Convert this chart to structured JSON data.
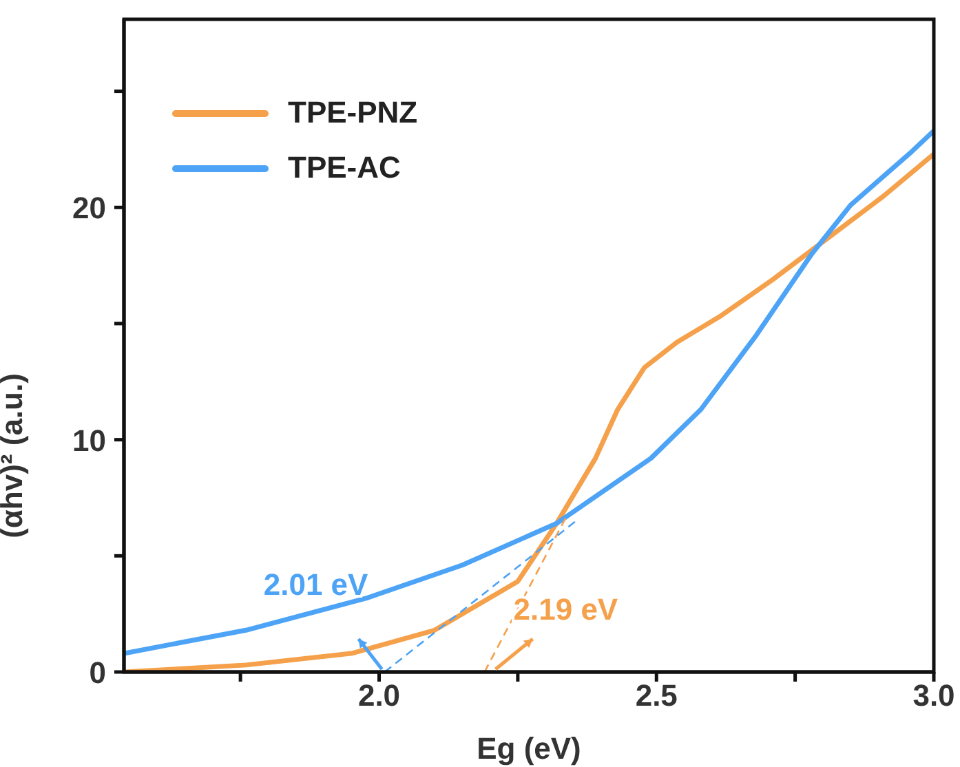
{
  "chart_data": {
    "type": "line",
    "xlabel": "Eg (eV)",
    "ylabel": "(αhv)² (a.u.)",
    "xlim": [
      1.54,
      3.0
    ],
    "xticks": [
      {
        "value": 1.75,
        "label": null
      },
      {
        "value": 2.0,
        "label": "2.0"
      },
      {
        "value": 2.25,
        "label": null
      },
      {
        "value": 2.5,
        "label": "2.5"
      },
      {
        "value": 2.75,
        "label": null
      },
      {
        "value": 3.0,
        "label": "3.0"
      }
    ],
    "ylim": [
      0,
      28.1
    ],
    "yticks": [
      0,
      {
        "value": 5,
        "label": null
      },
      10,
      {
        "value": 15,
        "label": null
      },
      20,
      {
        "value": 25,
        "label": null
      }
    ],
    "legend": "top left",
    "marker": "none",
    "line_style": "solid",
    "series": [
      {
        "name": "TPE-PNZ",
        "color": "#f5a04a",
        "x": [
          1.54,
          1.76,
          1.95,
          2.1,
          2.25,
          2.32,
          2.39,
          2.43,
          2.478,
          2.537,
          2.614,
          2.71,
          2.81,
          2.91,
          3.0
        ],
        "values": [
          0,
          0.3,
          0.8,
          1.8,
          3.9,
          6.4,
          9.2,
          11.3,
          13.1,
          14.2,
          15.3,
          16.9,
          18.7,
          20.5,
          22.3
        ]
      },
      {
        "name": "TPE-AC",
        "color": "#4da3f5",
        "x": [
          1.54,
          1.76,
          1.98,
          2.15,
          2.32,
          2.49,
          2.58,
          2.68,
          2.78,
          2.85,
          2.96,
          3.0
        ],
        "values": [
          0.8,
          1.8,
          3.2,
          4.6,
          6.4,
          9.2,
          11.3,
          14.5,
          18.0,
          20.1,
          22.4,
          23.3
        ]
      },
      {
        "type": "line",
        "color": "#f5a04a",
        "line_style": "dashed",
        "x": [
          2.19,
          2.34
        ],
        "values": [
          0,
          6.8
        ]
      },
      {
        "type": "line",
        "color": "#4da3f5",
        "line_style": "dashed",
        "x": [
          2.01,
          2.36
        ],
        "values": [
          0,
          6.6
        ]
      }
    ],
    "annotations": [
      {
        "text": "2.19 eV",
        "x": 2.19,
        "y": 0
      },
      {
        "text": "2.01 eV",
        "x": 2.01,
        "y": 0
      }
    ]
  }
}
